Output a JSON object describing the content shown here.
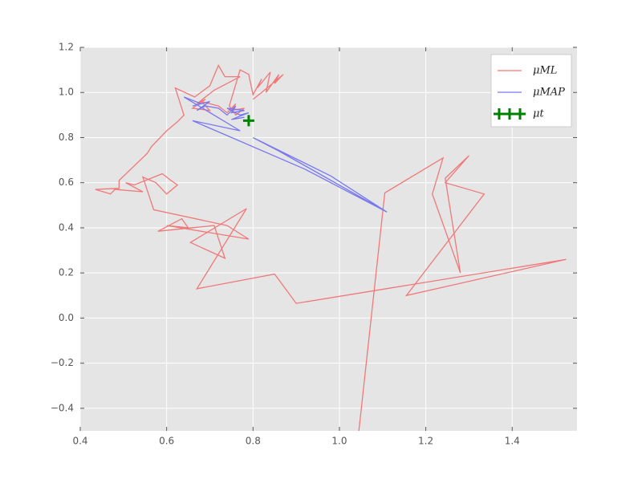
{
  "chart_data": {
    "type": "line",
    "xlim": [
      0.4,
      1.55
    ],
    "ylim": [
      -0.5,
      1.2
    ],
    "xticks": [
      0.4,
      0.6,
      0.8,
      {
        "value": 1.0,
        "label": "1.0"
      },
      1.2,
      1.4
    ],
    "yticks": [
      {
        "value": -0.4,
        "label": "−0.4"
      },
      {
        "value": -0.2,
        "label": "−0.2"
      },
      {
        "value": 0.0,
        "label": "0.0"
      },
      0.2,
      0.4,
      0.6,
      0.8,
      {
        "value": 1.0,
        "label": "1.0"
      },
      1.2
    ],
    "grid": true,
    "legend": "upper right",
    "series": [
      {
        "name": "μML",
        "color": "#f07878",
        "x": [
          1.045,
          1.105,
          1.24,
          1.215,
          1.28,
          1.245,
          1.3,
          1.245,
          1.335,
          1.155,
          1.525,
          0.9,
          0.85,
          0.67,
          0.785,
          0.655,
          0.735,
          0.71,
          0.58,
          0.635,
          0.65,
          0.6,
          0.79,
          0.74,
          0.57,
          0.545,
          0.575,
          0.6,
          0.625,
          0.61,
          0.59,
          0.525,
          0.505,
          0.545,
          0.48,
          0.47,
          0.435,
          0.49,
          0.49,
          0.555,
          0.565,
          0.6,
          0.625,
          0.64,
          0.62,
          0.665,
          0.7,
          0.72,
          0.735,
          0.77,
          0.71,
          0.67,
          0.69,
          0.66,
          0.7,
          0.68,
          0.72,
          0.74,
          0.76,
          0.75,
          0.78,
          0.76,
          0.745,
          0.77,
          0.79,
          0.8,
          0.82,
          0.81,
          0.84,
          0.83,
          0.86,
          0.85,
          0.87,
          0.82,
          0.8
        ],
        "values": [
          -0.5,
          0.555,
          0.71,
          0.55,
          0.2,
          0.62,
          0.72,
          0.6,
          0.55,
          0.1,
          0.26,
          0.065,
          0.195,
          0.13,
          0.485,
          0.335,
          0.265,
          0.41,
          0.385,
          0.44,
          0.4,
          0.41,
          0.35,
          0.41,
          0.48,
          0.625,
          0.6,
          0.55,
          0.59,
          0.61,
          0.64,
          0.59,
          0.6,
          0.56,
          0.57,
          0.55,
          0.57,
          0.575,
          0.61,
          0.73,
          0.76,
          0.83,
          0.87,
          0.9,
          1.02,
          0.98,
          1.03,
          1.12,
          1.07,
          1.07,
          1.01,
          0.95,
          0.97,
          0.93,
          0.92,
          0.96,
          0.94,
          0.91,
          0.95,
          0.92,
          0.93,
          0.9,
          0.94,
          1.1,
          1.08,
          0.99,
          1.06,
          1.02,
          1.09,
          1.0,
          1.08,
          1.04,
          1.08,
          1.0,
          0.97
        ]
      },
      {
        "name": "μMAP",
        "color": "#7878f0",
        "x": [
          0.87,
          1.11,
          0.98,
          0.8,
          0.86,
          1.11,
          0.92,
          0.66,
          0.77,
          0.64,
          0.68,
          0.66,
          0.7,
          0.67,
          0.69,
          0.72,
          0.74,
          0.76,
          0.75,
          0.78,
          0.74,
          0.77,
          0.79,
          0.75,
          0.78
        ],
        "values": [
          0.73,
          0.47,
          0.63,
          0.8,
          0.74,
          0.47,
          0.66,
          0.875,
          0.83,
          0.98,
          0.95,
          0.94,
          0.96,
          0.92,
          0.94,
          0.93,
          0.9,
          0.94,
          0.91,
          0.92,
          0.93,
          0.9,
          0.91,
          0.88,
          0.89
        ]
      },
      {
        "name": "μt",
        "color": "#008000",
        "marker": "+",
        "x": [
          0.79
        ],
        "values": [
          0.875
        ]
      }
    ]
  }
}
